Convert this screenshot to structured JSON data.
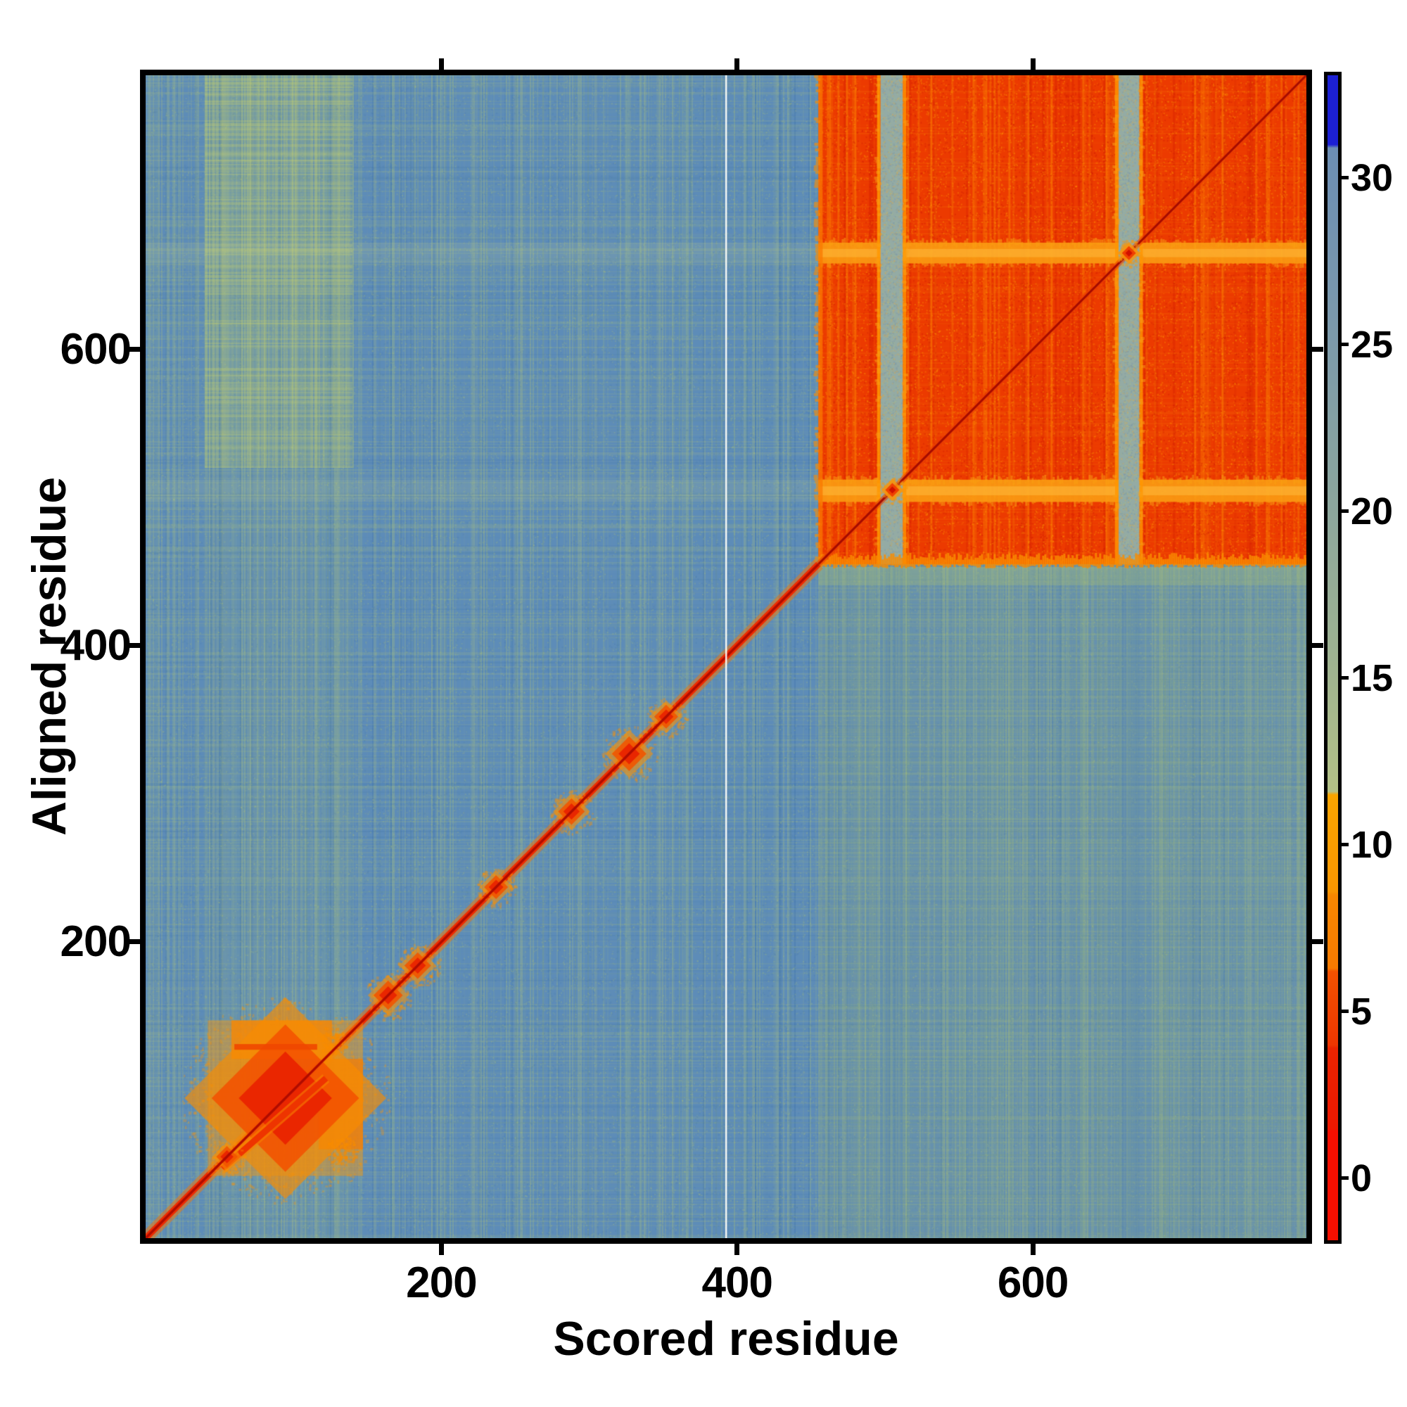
{
  "figure": {
    "background": "#ffffff",
    "kind": "predicted-aligned-error-heatmap"
  },
  "chart_data": {
    "type": "heatmap",
    "title": "",
    "xlabel": "Scored residue",
    "ylabel": "Aligned residue",
    "x_range": [
      0,
      785
    ],
    "y_range": [
      0,
      785
    ],
    "x_ticks": [
      200,
      400,
      600
    ],
    "y_ticks": [
      200,
      400,
      600
    ],
    "grid": false,
    "colorbar": {
      "position": "right",
      "vmin": -1.86,
      "vmax": 33.08,
      "ticks": [
        30,
        25,
        20,
        15,
        10,
        5,
        0
      ],
      "stops": [
        {
          "v": 33.08,
          "c": "#1c20d4"
        },
        {
          "v": 31.0,
          "c": "#1c20d4"
        },
        {
          "v": 30.9,
          "c": "#6c8eb3"
        },
        {
          "v": 26.0,
          "c": "#7a98ac"
        },
        {
          "v": 21.0,
          "c": "#89a49f"
        },
        {
          "v": 16.0,
          "c": "#9cb192"
        },
        {
          "v": 11.6,
          "c": "#b3c186"
        },
        {
          "v": 11.5,
          "c": "#f9a400"
        },
        {
          "v": 8.6,
          "c": "#f99600"
        },
        {
          "v": 8.5,
          "c": "#f88700"
        },
        {
          "v": 6.3,
          "c": "#f67a00"
        },
        {
          "v": 6.2,
          "c": "#f25200"
        },
        {
          "v": 4.0,
          "c": "#ee3600"
        },
        {
          "v": 3.9,
          "c": "#ea2400"
        },
        {
          "v": 1.5,
          "c": "#ec1800"
        },
        {
          "v": 1.4,
          "c": "#f50f00"
        },
        {
          "v": -1.86,
          "c": "#f50f00"
        }
      ]
    },
    "palette": {
      "base_blue": "#5d8cb8",
      "streak_green": "184,202,116",
      "streak_blue": "52,108,168",
      "quad_green": "148,176,126",
      "block_red": "#ec3a00",
      "block_orange": "252,140,0",
      "block_dark": "214,30,0",
      "band_gray": "#94aba4",
      "row_orange": "250,158,18",
      "diag_glow": "248,116,0",
      "diag_red": "#ee2c00",
      "diag_core": "#b00c00",
      "white_line": "rgba(255,255,250,0.92)"
    },
    "features": {
      "description": "Low-error (red) identity diagonal over high-error (steel blue) background; rigid red block for residues ~455-785 with two gray low-similarity columns and matching orange rows; N-terminal domain blob ~42-147 with off-diagonal arms; discrete small domains along the diagonal.",
      "block_start": 455,
      "block_end": 785,
      "gray_cols": [
        [
          497,
          512
        ],
        [
          658,
          672
        ]
      ],
      "orange_rows": [
        [
          497,
          512
        ],
        [
          658,
          672
        ]
      ],
      "block_cross_blobs": [
        505,
        665
      ],
      "white_line_x": 392,
      "domain_diamond": [
        42,
        147
      ],
      "domain_arm_top": [
        58,
        126,
        121,
        147
      ],
      "domain_arm_right": [
        117,
        147,
        60,
        121
      ],
      "fork_line": [
        [
          52,
          47
        ],
        [
          122,
          108
        ]
      ],
      "arm_core_line": [
        [
          60,
          116
        ],
        131
      ],
      "diag_blobs": [
        [
          55,
          8
        ],
        [
          164,
          11
        ],
        [
          184,
          10
        ],
        [
          237,
          9
        ],
        [
          288,
          10
        ],
        [
          327,
          13
        ],
        [
          352,
          9
        ]
      ],
      "yellow_band_cols": [
        40,
        140
      ],
      "yellow_band_strong_above_y": 520
    }
  },
  "axes_text": {
    "x_title": "Scored residue",
    "y_title": "Aligned residue"
  }
}
